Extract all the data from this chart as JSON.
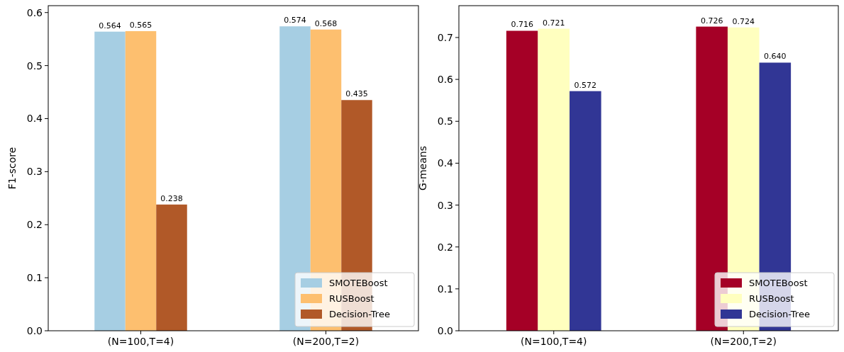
{
  "chart_data": [
    {
      "type": "bar",
      "ylabel": "F1-score",
      "categories": [
        "(N=100,T=4)",
        "(N=200,T=2)"
      ],
      "ylim": [
        0,
        0.613
      ],
      "yticks": [
        {
          "value": 0,
          "label": "0.0"
        },
        {
          "value": 0.1,
          "label": "0.1"
        },
        {
          "value": 0.2,
          "label": "0.2"
        },
        {
          "value": 0.3,
          "label": "0.3"
        },
        {
          "value": 0.4,
          "label": "0.4"
        },
        {
          "value": 0.5,
          "label": "0.5"
        },
        {
          "value": 0.6,
          "label": "0.6"
        }
      ],
      "legend": "bottom right",
      "series": [
        {
          "name": "SMOTEBoost",
          "color": "#a6cee3",
          "values": [
            0.564,
            0.574
          ],
          "value_labels": [
            "0.564",
            "0.574"
          ]
        },
        {
          "name": "RUSBoost",
          "color": "#fdbf6f",
          "values": [
            0.565,
            0.568
          ],
          "value_labels": [
            "0.565",
            "0.568"
          ]
        },
        {
          "name": "Decision-Tree",
          "color": "#b15928",
          "values": [
            0.238,
            0.435
          ],
          "value_labels": [
            "0.238",
            "0.435"
          ]
        }
      ]
    },
    {
      "type": "bar",
      "ylabel": "G-means",
      "categories": [
        "(N=100,T=4)",
        "(N=200,T=2)"
      ],
      "ylim": [
        0,
        0.776
      ],
      "yticks": [
        {
          "value": 0,
          "label": "0.0"
        },
        {
          "value": 0.1,
          "label": "0.1"
        },
        {
          "value": 0.2,
          "label": "0.2"
        },
        {
          "value": 0.3,
          "label": "0.3"
        },
        {
          "value": 0.4,
          "label": "0.4"
        },
        {
          "value": 0.5,
          "label": "0.5"
        },
        {
          "value": 0.6,
          "label": "0.6"
        },
        {
          "value": 0.7,
          "label": "0.7"
        }
      ],
      "legend": "bottom right",
      "series": [
        {
          "name": "SMOTEBoost",
          "color": "#a50026",
          "values": [
            0.716,
            0.726
          ],
          "value_labels": [
            "0.716",
            "0.726"
          ]
        },
        {
          "name": "RUSBoost",
          "color": "#ffffbf",
          "values": [
            0.721,
            0.724
          ],
          "value_labels": [
            "0.721",
            "0.724"
          ]
        },
        {
          "name": "Decision-Tree",
          "color": "#313695",
          "values": [
            0.572,
            0.64
          ],
          "value_labels": [
            "0.572",
            "0.640"
          ]
        }
      ]
    }
  ]
}
